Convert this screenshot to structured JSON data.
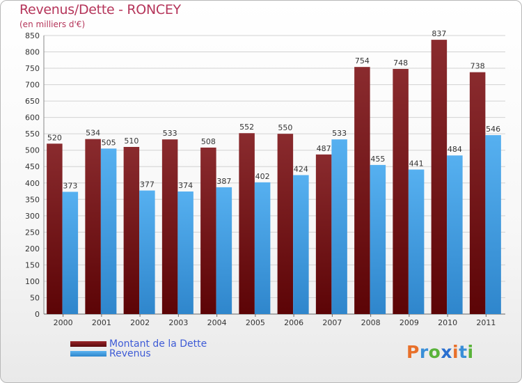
{
  "header": {
    "title": "Revenus/Dette - RONCEY",
    "subtitle": "(en milliers d'€)"
  },
  "legend": {
    "dette_label": "Montant de la Dette",
    "revenus_label": "Revenus"
  },
  "logo": {
    "text": "Proxiti",
    "letters": [
      "P",
      "r",
      "o",
      "x",
      "i",
      "t",
      "i"
    ]
  },
  "colors": {
    "dette": "#7b1618",
    "revenus": "#3f9fe4",
    "title": "#b5355a",
    "legend_text": "#3e5bd6",
    "logo_letters": [
      "#e8702a",
      "#3a8fd8",
      "#59b33a",
      "#2a6fd0",
      "#e8702a",
      "#3a8fd8",
      "#59b33a"
    ]
  },
  "chart_data": {
    "type": "bar",
    "title": "Revenus/Dette - RONCEY",
    "subtitle": "(en milliers d'€)",
    "categories": [
      "2000",
      "2001",
      "2002",
      "2003",
      "2004",
      "2005",
      "2006",
      "2007",
      "2008",
      "2009",
      "2010",
      "2011"
    ],
    "series": [
      {
        "name": "Montant de la Dette",
        "values": [
          520,
          534,
          510,
          533,
          508,
          552,
          550,
          487,
          754,
          748,
          837,
          738
        ]
      },
      {
        "name": "Revenus",
        "values": [
          373,
          505,
          377,
          374,
          387,
          402,
          424,
          533,
          455,
          441,
          484,
          546
        ]
      }
    ],
    "ylim": [
      0,
      850
    ],
    "y_ticks": [
      0,
      50,
      100,
      150,
      200,
      250,
      300,
      350,
      400,
      450,
      500,
      550,
      600,
      650,
      700,
      750,
      800,
      850
    ],
    "grid": true,
    "legend_position": "bottom-left"
  }
}
